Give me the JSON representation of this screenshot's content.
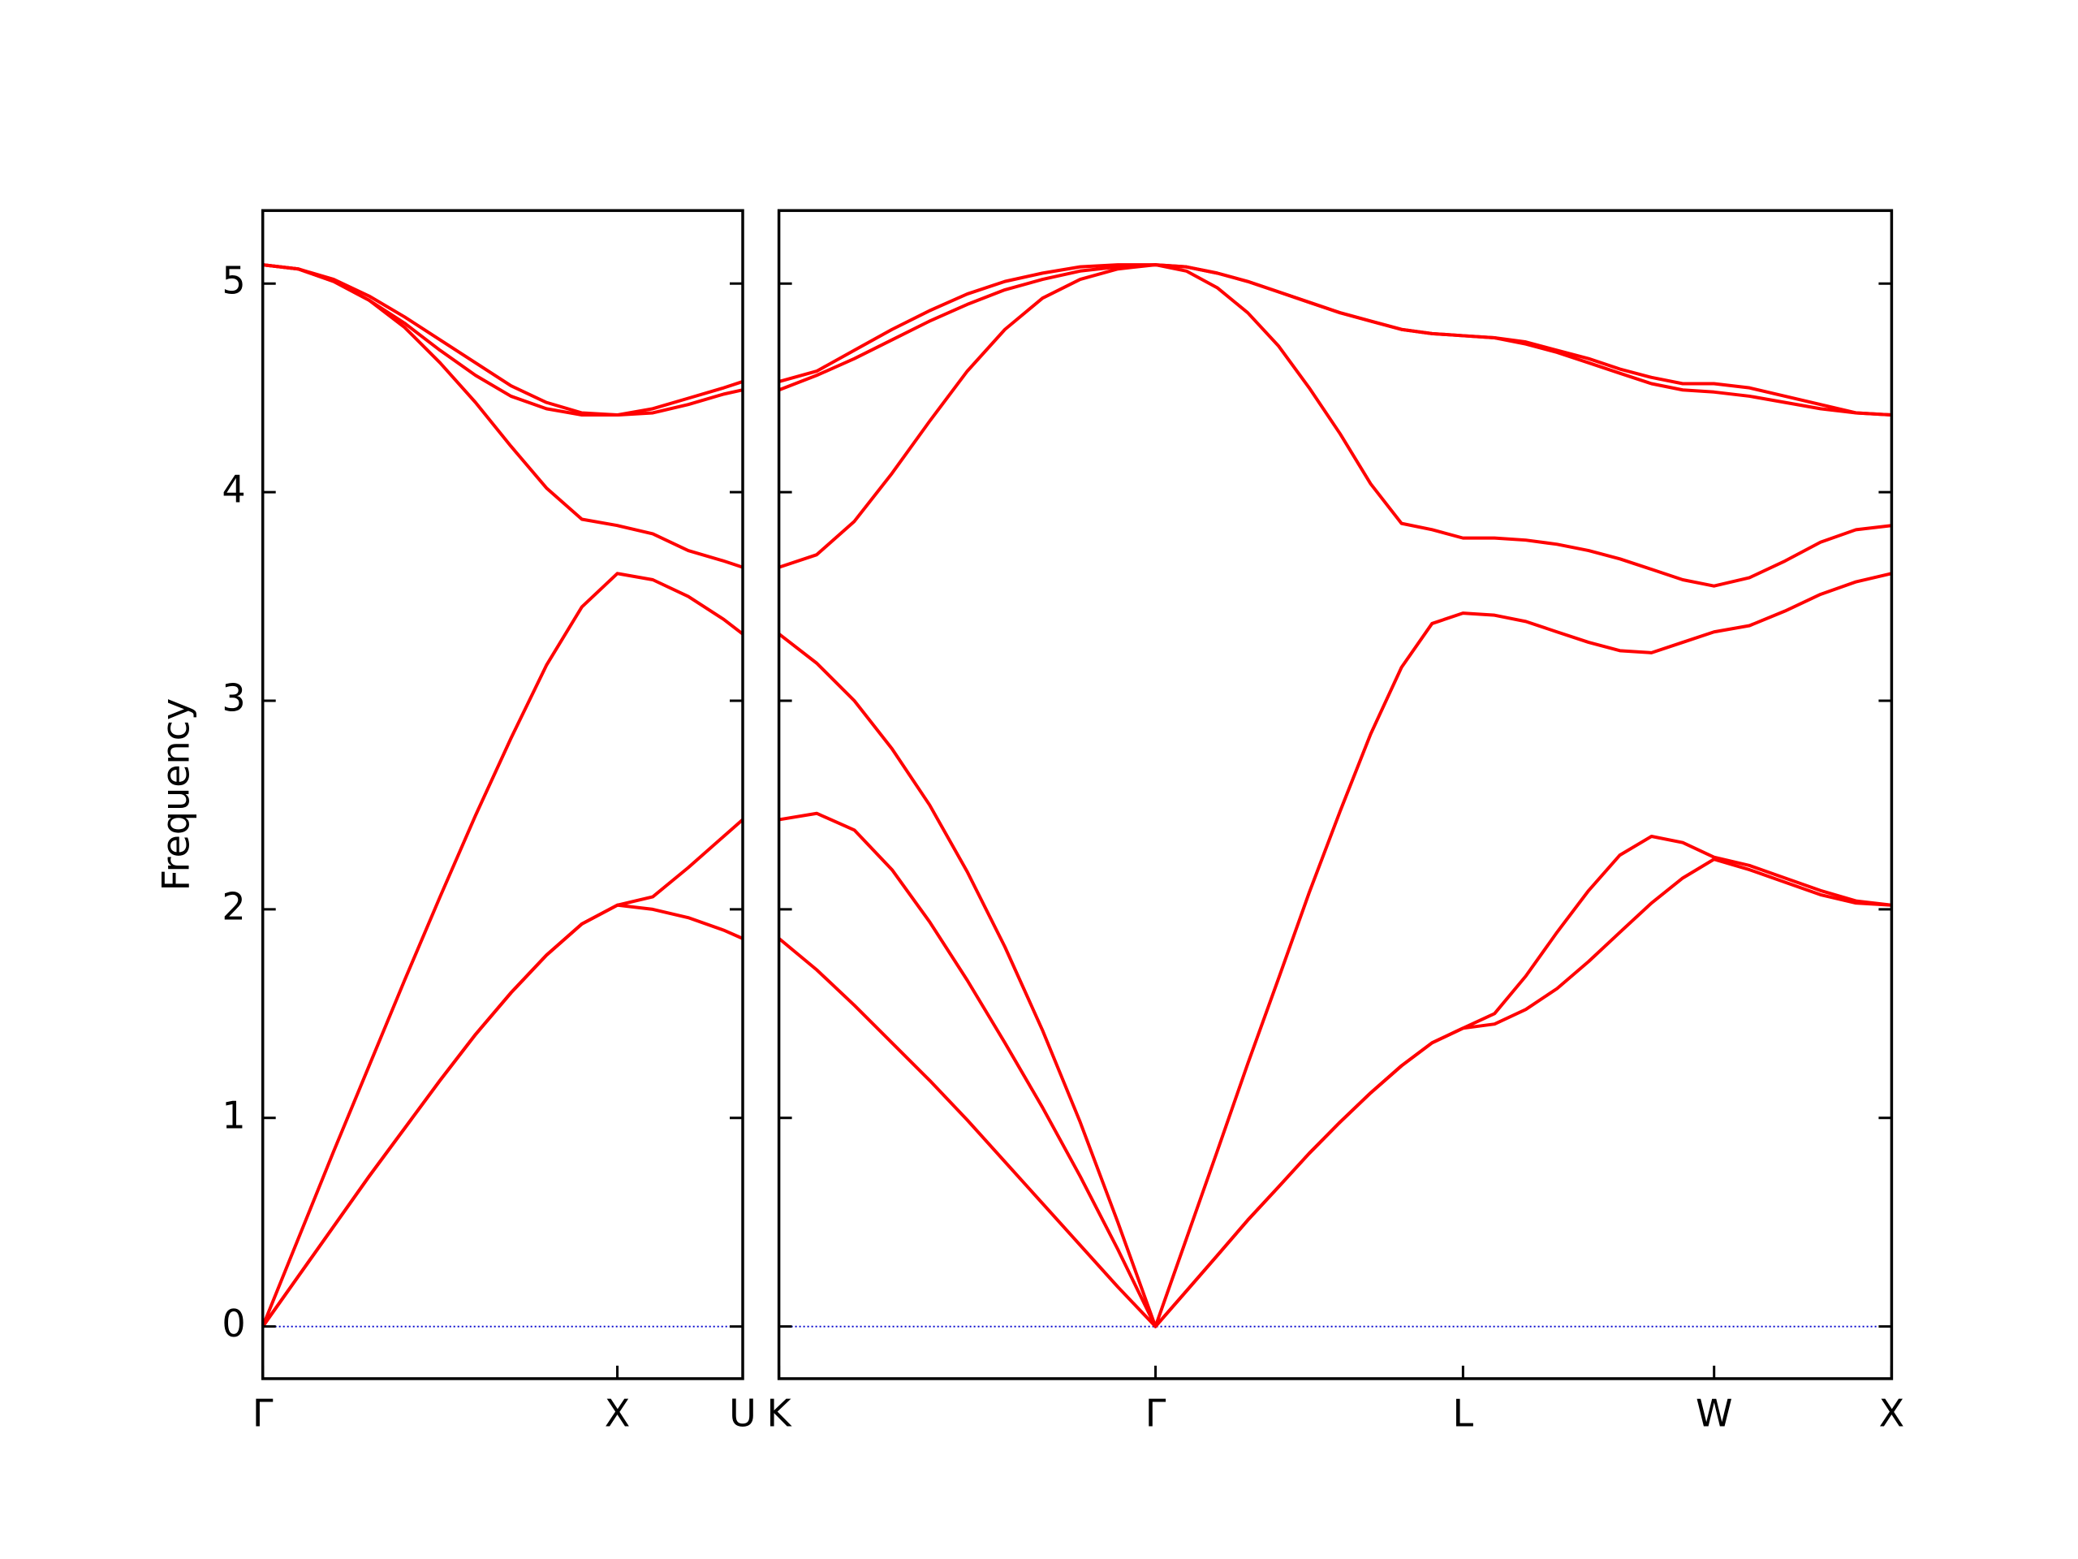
{
  "chart_data": [
    {
      "type": "line",
      "ylabel": "Frequency",
      "ytick_labels": true,
      "xlim": [
        0,
        1.3536
      ],
      "ylim": [
        -0.25,
        5.35
      ],
      "xticks": [
        {
          "value": 0,
          "label": "Γ"
        },
        {
          "value": 1,
          "label": "X"
        },
        {
          "value": 1.3536,
          "label": "U"
        }
      ],
      "yticks": [
        0,
        1,
        2,
        3,
        4,
        5
      ],
      "hlines": [
        0
      ],
      "hline_color": "#0000cc",
      "color": "#ff0000",
      "x": [
        0,
        0.1,
        0.2,
        0.3,
        0.4,
        0.5,
        0.6,
        0.7,
        0.8,
        0.9,
        1.0,
        1.1,
        1.2,
        1.3,
        1.3536
      ],
      "series": [
        {
          "values": [
            0,
            0.24,
            0.48,
            0.72,
            0.95,
            1.18,
            1.4,
            1.6,
            1.78,
            1.93,
            2.02,
            2.0,
            1.96,
            1.9,
            1.86
          ]
        },
        {
          "values": [
            0,
            0.24,
            0.48,
            0.72,
            0.95,
            1.18,
            1.4,
            1.6,
            1.78,
            1.93,
            2.02,
            2.06,
            2.2,
            2.35,
            2.43
          ]
        },
        {
          "values": [
            0,
            0.42,
            0.84,
            1.25,
            1.66,
            2.06,
            2.45,
            2.82,
            3.17,
            3.45,
            3.61,
            3.58,
            3.5,
            3.39,
            3.32
          ]
        },
        {
          "values": [
            5.09,
            5.07,
            5.01,
            4.92,
            4.79,
            4.62,
            4.43,
            4.22,
            4.02,
            3.87,
            3.84,
            3.8,
            3.72,
            3.67,
            3.64
          ]
        },
        {
          "values": [
            5.09,
            5.07,
            5.01,
            4.92,
            4.81,
            4.68,
            4.56,
            4.46,
            4.4,
            4.37,
            4.37,
            4.38,
            4.42,
            4.47,
            4.49
          ]
        },
        {
          "values": [
            5.09,
            5.07,
            5.02,
            4.94,
            4.84,
            4.73,
            4.62,
            4.51,
            4.43,
            4.38,
            4.37,
            4.4,
            4.45,
            4.5,
            4.53
          ]
        }
      ]
    },
    {
      "type": "line",
      "ytick_labels": false,
      "xlim": [
        1.3536,
        4.4873
      ],
      "ylim": [
        -0.25,
        5.35
      ],
      "xticks": [
        {
          "value": 1.3536,
          "label": "K"
        },
        {
          "value": 2.4142,
          "label": "Γ"
        },
        {
          "value": 3.2802,
          "label": "L"
        },
        {
          "value": 3.9873,
          "label": "W"
        },
        {
          "value": 4.4873,
          "label": "X"
        }
      ],
      "yticks": [
        0,
        1,
        2,
        3,
        4,
        5
      ],
      "hlines": [
        0
      ],
      "hline_color": "#0000cc",
      "color": "#ff0000",
      "x": [
        1.354,
        1.46,
        1.566,
        1.672,
        1.778,
        1.884,
        1.99,
        2.096,
        2.202,
        2.308,
        2.414,
        2.501,
        2.588,
        2.674,
        2.761,
        2.847,
        2.934,
        3.02,
        3.107,
        3.193,
        3.28,
        3.369,
        3.457,
        3.545,
        3.634,
        3.722,
        3.811,
        3.899,
        3.987,
        4.087,
        4.187,
        4.287,
        4.387,
        4.487
      ],
      "series": [
        {
          "values": [
            1.86,
            1.71,
            1.54,
            1.36,
            1.18,
            0.99,
            0.79,
            0.59,
            0.39,
            0.19,
            0,
            0.17,
            0.34,
            0.51,
            0.67,
            0.83,
            0.98,
            1.12,
            1.25,
            1.36,
            1.43,
            1.45,
            1.52,
            1.62,
            1.75,
            1.89,
            2.03,
            2.15,
            2.24,
            2.19,
            2.13,
            2.07,
            2.03,
            2.02
          ]
        },
        {
          "values": [
            2.43,
            2.46,
            2.38,
            2.19,
            1.94,
            1.66,
            1.36,
            1.05,
            0.72,
            0.37,
            0,
            0.17,
            0.34,
            0.51,
            0.67,
            0.83,
            0.98,
            1.12,
            1.25,
            1.36,
            1.43,
            1.5,
            1.68,
            1.89,
            2.09,
            2.26,
            2.35,
            2.32,
            2.25,
            2.21,
            2.15,
            2.09,
            2.04,
            2.02
          ]
        },
        {
          "values": [
            3.32,
            3.18,
            3.0,
            2.77,
            2.5,
            2.18,
            1.82,
            1.42,
            0.98,
            0.5,
            0,
            0.42,
            0.84,
            1.26,
            1.67,
            2.08,
            2.47,
            2.84,
            3.16,
            3.37,
            3.42,
            3.41,
            3.38,
            3.33,
            3.28,
            3.24,
            3.23,
            3.28,
            3.33,
            3.36,
            3.43,
            3.51,
            3.57,
            3.61
          ]
        },
        {
          "values": [
            3.64,
            3.7,
            3.86,
            4.09,
            4.34,
            4.58,
            4.78,
            4.93,
            5.02,
            5.07,
            5.09,
            5.06,
            4.98,
            4.86,
            4.7,
            4.5,
            4.28,
            4.04,
            3.85,
            3.82,
            3.78,
            3.78,
            3.77,
            3.75,
            3.72,
            3.68,
            3.63,
            3.58,
            3.55,
            3.59,
            3.67,
            3.76,
            3.82,
            3.84
          ]
        },
        {
          "values": [
            4.49,
            4.56,
            4.64,
            4.73,
            4.82,
            4.9,
            4.97,
            5.02,
            5.06,
            5.08,
            5.09,
            5.08,
            5.05,
            5.01,
            4.96,
            4.91,
            4.86,
            4.82,
            4.78,
            4.76,
            4.75,
            4.74,
            4.71,
            4.67,
            4.62,
            4.57,
            4.52,
            4.49,
            4.48,
            4.46,
            4.43,
            4.4,
            4.38,
            4.37
          ]
        },
        {
          "values": [
            4.53,
            4.58,
            4.68,
            4.78,
            4.87,
            4.95,
            5.01,
            5.05,
            5.08,
            5.09,
            5.09,
            5.08,
            5.05,
            5.01,
            4.96,
            4.91,
            4.86,
            4.82,
            4.78,
            4.76,
            4.75,
            4.74,
            4.72,
            4.68,
            4.64,
            4.59,
            4.55,
            4.52,
            4.52,
            4.5,
            4.46,
            4.42,
            4.38,
            4.37
          ]
        }
      ]
    }
  ]
}
